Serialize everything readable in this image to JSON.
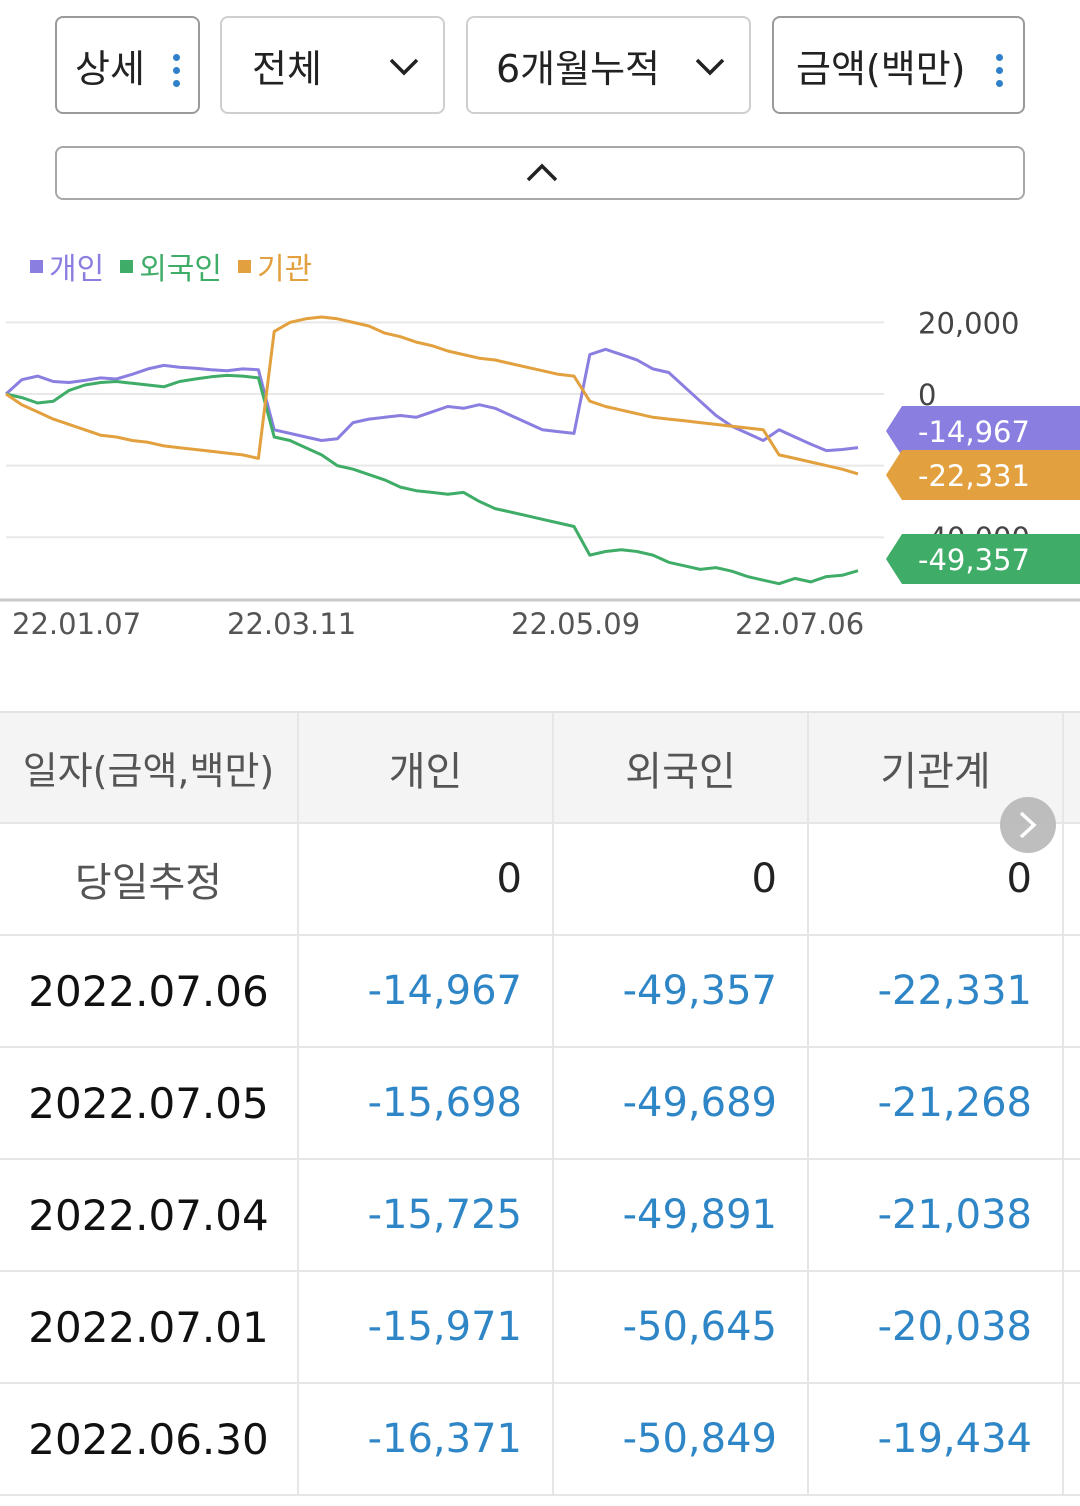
{
  "filters": [
    {
      "label": "상세",
      "type": "kebab"
    },
    {
      "label": "전체",
      "type": "dropdown"
    },
    {
      "label": "6개월누적",
      "type": "dropdown"
    },
    {
      "label": "금액(백만)",
      "type": "kebab"
    }
  ],
  "legend": [
    {
      "label": "개인",
      "color": "#8a7ee0"
    },
    {
      "label": "외국인",
      "color": "#3fad67"
    },
    {
      "label": "기관",
      "color": "#e2a03e"
    }
  ],
  "chart_data": {
    "type": "line",
    "x_ticks": [
      "22.01.07",
      "22.03.11",
      "22.05.09",
      "22.07.06"
    ],
    "y_ticks": [
      "20,000",
      "0",
      "-40,000"
    ],
    "ylim": [
      -60000,
      25000
    ],
    "series": [
      {
        "name": "개인",
        "color": "#8a7ee0",
        "last_label": "-14,967",
        "values": [
          0,
          4000,
          5000,
          3500,
          3200,
          3800,
          4500,
          4200,
          5500,
          7000,
          8000,
          7500,
          7200,
          6800,
          6500,
          7000,
          6800,
          -10000,
          -11000,
          -12000,
          -13000,
          -12500,
          -8000,
          -7000,
          -6500,
          -6000,
          -6500,
          -5000,
          -3500,
          -4000,
          -3000,
          -4000,
          -6000,
          -8000,
          -10000,
          -10500,
          -11000,
          11000,
          12500,
          11000,
          9500,
          7000,
          6000,
          2000,
          -2000,
          -6000,
          -9000,
          -11000,
          -13000,
          -10000,
          -12000,
          -14000,
          -15800,
          -15500,
          -14967
        ]
      },
      {
        "name": "외국인",
        "color": "#3fad67",
        "last_label": "-49,357",
        "values": [
          0,
          -1000,
          -2500,
          -2000,
          1000,
          2500,
          3200,
          3500,
          3000,
          2500,
          2000,
          3500,
          4200,
          4800,
          5200,
          5000,
          4500,
          -12000,
          -13000,
          -15000,
          -17000,
          -20000,
          -21000,
          -22500,
          -24000,
          -26000,
          -27000,
          -27500,
          -28000,
          -27500,
          -30000,
          -32000,
          -33000,
          -34000,
          -35000,
          -36000,
          -37000,
          -45000,
          -44000,
          -43500,
          -44000,
          -45000,
          -47000,
          -48000,
          -49000,
          -48500,
          -49500,
          -51000,
          -52000,
          -53000,
          -51500,
          -52500,
          -51000,
          -50645,
          -49357
        ]
      },
      {
        "name": "기관",
        "color": "#e2a03e",
        "last_label": "-22,331",
        "values": [
          0,
          -3000,
          -5000,
          -7000,
          -8500,
          -10000,
          -11500,
          -12000,
          -13000,
          -13500,
          -14500,
          -15000,
          -15500,
          -16000,
          -16500,
          -17000,
          -18000,
          17500,
          20000,
          21000,
          21500,
          21000,
          20000,
          19000,
          17000,
          16000,
          14500,
          13500,
          12000,
          11000,
          10000,
          9500,
          8500,
          7500,
          6500,
          5500,
          5000,
          -2000,
          -3500,
          -4500,
          -5500,
          -6500,
          -7000,
          -7500,
          -8000,
          -8500,
          -9000,
          -9500,
          -10000,
          -17000,
          -18000,
          -19000,
          -20000,
          -21000,
          -22331
        ]
      }
    ]
  },
  "table": {
    "headers": [
      "일자(금액,백만)",
      "개인",
      "외국인",
      "기관계"
    ],
    "rows": [
      [
        "당일추정",
        "0",
        "0",
        "0"
      ],
      [
        "2022.07.06",
        "-14,967",
        "-49,357",
        "-22,331"
      ],
      [
        "2022.07.05",
        "-15,698",
        "-49,689",
        "-21,268"
      ],
      [
        "2022.07.04",
        "-15,725",
        "-49,891",
        "-21,038"
      ],
      [
        "2022.07.01",
        "-15,971",
        "-50,645",
        "-20,038"
      ],
      [
        "2022.06.30",
        "-16,371",
        "-50,849",
        "-19,434"
      ]
    ]
  }
}
